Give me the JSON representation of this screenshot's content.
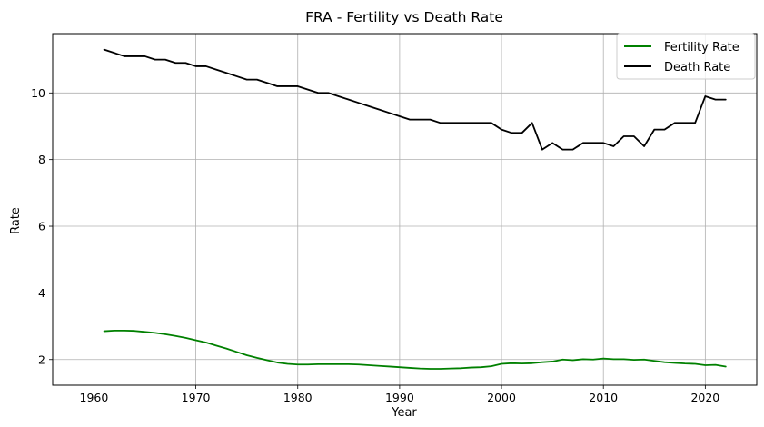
{
  "chart_data": {
    "type": "line",
    "title": "FRA - Fertility vs Death Rate",
    "xlabel": "Year",
    "ylabel": "Rate",
    "xlim": [
      1955.95,
      2025.05
    ],
    "ylim": [
      1.23,
      11.78
    ],
    "xticks": [
      1960,
      1970,
      1980,
      1990,
      2000,
      2010,
      2020
    ],
    "yticks": [
      2,
      4,
      6,
      8,
      10
    ],
    "grid": true,
    "legend": "top-right",
    "x": [
      1961,
      1962,
      1963,
      1964,
      1965,
      1966,
      1967,
      1968,
      1969,
      1970,
      1971,
      1972,
      1973,
      1974,
      1975,
      1976,
      1977,
      1978,
      1979,
      1980,
      1981,
      1982,
      1983,
      1984,
      1985,
      1986,
      1987,
      1988,
      1989,
      1990,
      1991,
      1992,
      1993,
      1994,
      1995,
      1996,
      1997,
      1998,
      1999,
      2000,
      2001,
      2002,
      2003,
      2004,
      2005,
      2006,
      2007,
      2008,
      2009,
      2010,
      2011,
      2012,
      2013,
      2014,
      2015,
      2016,
      2017,
      2018,
      2019,
      2020,
      2021,
      2022
    ],
    "series": [
      {
        "name": "Fertility Rate",
        "color": "#008000",
        "values": [
          2.85,
          2.87,
          2.87,
          2.86,
          2.83,
          2.8,
          2.76,
          2.71,
          2.65,
          2.58,
          2.51,
          2.42,
          2.33,
          2.23,
          2.13,
          2.05,
          1.98,
          1.91,
          1.87,
          1.85,
          1.85,
          1.86,
          1.86,
          1.86,
          1.86,
          1.85,
          1.83,
          1.81,
          1.79,
          1.77,
          1.75,
          1.73,
          1.72,
          1.72,
          1.73,
          1.74,
          1.76,
          1.77,
          1.8,
          1.87,
          1.89,
          1.88,
          1.89,
          1.92,
          1.94,
          2.0,
          1.98,
          2.01,
          2.0,
          2.03,
          2.01,
          2.01,
          1.99,
          2.0,
          1.96,
          1.92,
          1.9,
          1.88,
          1.87,
          1.83,
          1.84,
          1.79
        ]
      },
      {
        "name": "Death Rate",
        "color": "#000000",
        "values": [
          11.3,
          11.2,
          11.1,
          11.1,
          11.1,
          11.0,
          11.0,
          10.9,
          10.9,
          10.8,
          10.8,
          10.7,
          10.6,
          10.5,
          10.4,
          10.4,
          10.3,
          10.2,
          10.2,
          10.2,
          10.1,
          10.0,
          10.0,
          9.9,
          9.8,
          9.7,
          9.6,
          9.5,
          9.4,
          9.3,
          9.2,
          9.2,
          9.2,
          9.1,
          9.1,
          9.1,
          9.1,
          9.1,
          9.1,
          8.9,
          8.8,
          8.8,
          9.1,
          8.3,
          8.5,
          8.3,
          8.3,
          8.5,
          8.5,
          8.5,
          8.4,
          8.7,
          8.7,
          8.4,
          8.9,
          8.9,
          9.1,
          9.1,
          9.1,
          9.9,
          9.8,
          9.8
        ]
      }
    ]
  }
}
